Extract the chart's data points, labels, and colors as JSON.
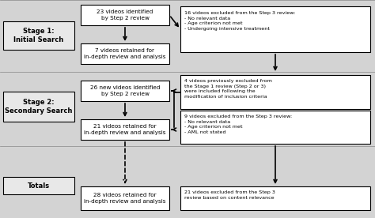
{
  "bg_color": "#d3d3d3",
  "box_color": "#ffffff",
  "border_color": "#000000",
  "text_color": "#000000",
  "stage1_label": "Stage 1:\nInitial Search",
  "stage2_label": "Stage 2:\nSecondary Search",
  "totals_label": "Totals",
  "box1_text": "23 videos identified\nby Step 2 review",
  "box2_text": "7 videos retained for\nin-depth review and analysis",
  "box3_text": "16 videos excluded from the Step 3 review:\n- No relevant data\n- Age criterion not met\n- Undergoing intensive treatment",
  "box4_text": "26 new videos identified\nby Step 2 review",
  "box5_text": "4 videos previously excluded from\nthe Stage 1 review (Step 2 or 3)\nwere included following the\nmodification of inclusion criteria",
  "box6_text": "21 videos retained for\nin-depth review and analysis",
  "box7_text": "9 videos excluded from the Step 3 review:\n- No relevant data\n- Age criterion not met\n- AML not stated",
  "box8_text": "28 videos retained for\nin-depth review and analysis",
  "box9_text": "21 videos excluded from the Step 3\nreview based on content relevance",
  "section_dividers": [
    91,
    185
  ],
  "section_colors": [
    "#d3d3d3",
    "#d3d3d3",
    "#d3d3d3"
  ]
}
